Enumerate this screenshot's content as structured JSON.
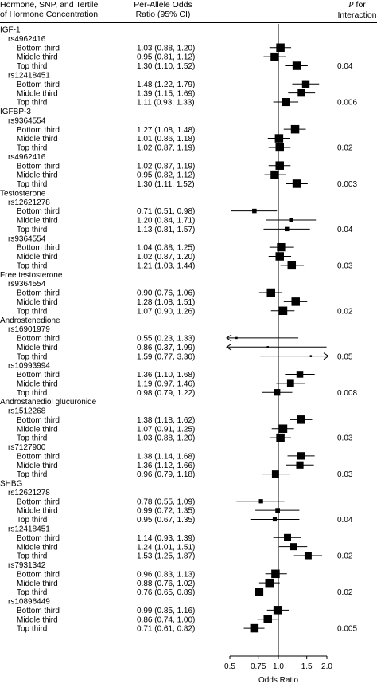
{
  "header": {
    "col1_line1": "Hormone, SNP, and Tertile",
    "col1_line2": "of Hormone Concentration",
    "col2_line1": "Per-Allele Odds",
    "col2_line2": "Ratio (95% CI)",
    "col3_p": "P",
    "col3_for": " for",
    "col3_line2": "Interaction"
  },
  "chart_data": {
    "type": "forest",
    "xlabel": "Odds Ratio",
    "x_ticks": [
      0.5,
      0.75,
      1.0,
      1.5,
      2.0
    ],
    "x_tick_labels": [
      "0.5",
      "0.75",
      "1.0",
      "1.5",
      "2.0"
    ],
    "x_scale": "log",
    "xlim": [
      0.5,
      2.0
    ],
    "reference_line": 1.0,
    "rows": [
      {
        "kind": "hormone",
        "label": "IGF-1"
      },
      {
        "kind": "snp",
        "label": "rs4962416"
      },
      {
        "kind": "tertile",
        "label": "Bottom third",
        "or": 1.03,
        "lo": 0.88,
        "hi": 1.2,
        "ci": "1.03 (0.88, 1.20)"
      },
      {
        "kind": "tertile",
        "label": "Middle third",
        "or": 0.95,
        "lo": 0.81,
        "hi": 1.12,
        "ci": "0.95 (0.81, 1.12)"
      },
      {
        "kind": "tertile",
        "label": "Top third",
        "or": 1.3,
        "lo": 1.1,
        "hi": 1.52,
        "ci": "1.30 (1.10, 1.52)",
        "p": "0.04"
      },
      {
        "kind": "snp",
        "label": "rs12418451"
      },
      {
        "kind": "tertile",
        "label": "Bottom third",
        "or": 1.48,
        "lo": 1.22,
        "hi": 1.79,
        "ci": "1.48 (1.22, 1.79)"
      },
      {
        "kind": "tertile",
        "label": "Middle third",
        "or": 1.39,
        "lo": 1.15,
        "hi": 1.69,
        "ci": "1.39 (1.15, 1.69)"
      },
      {
        "kind": "tertile",
        "label": "Top third",
        "or": 1.11,
        "lo": 0.93,
        "hi": 1.33,
        "ci": "1.11 (0.93, 1.33)",
        "p": "0.006"
      },
      {
        "kind": "hormone",
        "label": "IGFBP-3"
      },
      {
        "kind": "snp",
        "label": "rs9364554"
      },
      {
        "kind": "tertile",
        "label": "Bottom third",
        "or": 1.27,
        "lo": 1.08,
        "hi": 1.48,
        "ci": "1.27 (1.08, 1.48)"
      },
      {
        "kind": "tertile",
        "label": "Middle third",
        "or": 1.01,
        "lo": 0.86,
        "hi": 1.18,
        "ci": "1.01 (0.86, 1.18)"
      },
      {
        "kind": "tertile",
        "label": "Top third",
        "or": 1.02,
        "lo": 0.87,
        "hi": 1.19,
        "ci": "1.02 (0.87, 1.19)",
        "p": "0.02"
      },
      {
        "kind": "snp",
        "label": "rs4962416"
      },
      {
        "kind": "tertile",
        "label": "Bottom third",
        "or": 1.02,
        "lo": 0.87,
        "hi": 1.19,
        "ci": "1.02 (0.87, 1.19)"
      },
      {
        "kind": "tertile",
        "label": "Middle third",
        "or": 0.95,
        "lo": 0.82,
        "hi": 1.12,
        "ci": "0.95 (0.82, 1.12)"
      },
      {
        "kind": "tertile",
        "label": "Top third",
        "or": 1.3,
        "lo": 1.11,
        "hi": 1.52,
        "ci": "1.30 (1.11, 1.52)",
        "p": "0.003"
      },
      {
        "kind": "hormone",
        "label": "Testosterone"
      },
      {
        "kind": "snp",
        "label": "rs12621278"
      },
      {
        "kind": "tertile",
        "label": "Bottom third",
        "or": 0.71,
        "lo": 0.51,
        "hi": 0.98,
        "ci": "0.71 (0.51, 0.98)"
      },
      {
        "kind": "tertile",
        "label": "Middle third",
        "or": 1.2,
        "lo": 0.84,
        "hi": 1.71,
        "ci": "1.20 (0.84, 1.71)"
      },
      {
        "kind": "tertile",
        "label": "Top third",
        "or": 1.13,
        "lo": 0.81,
        "hi": 1.57,
        "ci": "1.13 (0.81, 1.57)",
        "p": "0.04"
      },
      {
        "kind": "snp",
        "label": "rs9364554"
      },
      {
        "kind": "tertile",
        "label": "Bottom third",
        "or": 1.04,
        "lo": 0.88,
        "hi": 1.25,
        "ci": "1.04 (0.88, 1.25)"
      },
      {
        "kind": "tertile",
        "label": "Middle third",
        "or": 1.02,
        "lo": 0.87,
        "hi": 1.2,
        "ci": "1.02 (0.87, 1.20)"
      },
      {
        "kind": "tertile",
        "label": "Top third",
        "or": 1.21,
        "lo": 1.03,
        "hi": 1.44,
        "ci": "1.21 (1.03, 1.44)",
        "p": "0.03"
      },
      {
        "kind": "hormone",
        "label": "Free testosterone"
      },
      {
        "kind": "snp",
        "label": "rs9364554"
      },
      {
        "kind": "tertile",
        "label": "Bottom third",
        "or": 0.9,
        "lo": 0.76,
        "hi": 1.06,
        "ci": "0.90 (0.76, 1.06)"
      },
      {
        "kind": "tertile",
        "label": "Middle third",
        "or": 1.28,
        "lo": 1.08,
        "hi": 1.51,
        "ci": "1.28 (1.08, 1.51)"
      },
      {
        "kind": "tertile",
        "label": "Top third",
        "or": 1.07,
        "lo": 0.9,
        "hi": 1.26,
        "ci": "1.07 (0.90, 1.26)",
        "p": "0.02"
      },
      {
        "kind": "hormone",
        "label": "Androstenedione"
      },
      {
        "kind": "snp",
        "label": "rs16901979"
      },
      {
        "kind": "tertile",
        "label": "Bottom third",
        "or": 0.55,
        "lo": 0.23,
        "hi": 1.33,
        "ci": "0.55 (0.23, 1.33)"
      },
      {
        "kind": "tertile",
        "label": "Middle third",
        "or": 0.86,
        "lo": 0.37,
        "hi": 1.99,
        "ci": "0.86 (0.37, 1.99)"
      },
      {
        "kind": "tertile",
        "label": "Top third",
        "or": 1.59,
        "lo": 0.77,
        "hi": 3.3,
        "ci": "1.59 (0.77, 3.30)",
        "p": "0.05"
      },
      {
        "kind": "snp",
        "label": "rs10993994"
      },
      {
        "kind": "tertile",
        "label": "Bottom third",
        "or": 1.36,
        "lo": 1.1,
        "hi": 1.68,
        "ci": "1.36 (1.10, 1.68)"
      },
      {
        "kind": "tertile",
        "label": "Middle third",
        "or": 1.19,
        "lo": 0.97,
        "hi": 1.46,
        "ci": "1.19 (0.97, 1.46)"
      },
      {
        "kind": "tertile",
        "label": "Top third",
        "or": 0.98,
        "lo": 0.79,
        "hi": 1.22,
        "ci": "0.98 (0.79, 1.22)",
        "p": "0.008"
      },
      {
        "kind": "hormone",
        "label": "Androstanediol glucuronide"
      },
      {
        "kind": "snp",
        "label": "rs1512268"
      },
      {
        "kind": "tertile",
        "label": "Bottom third",
        "or": 1.38,
        "lo": 1.18,
        "hi": 1.62,
        "ci": "1.38 (1.18, 1.62)"
      },
      {
        "kind": "tertile",
        "label": "Middle third",
        "or": 1.07,
        "lo": 0.91,
        "hi": 1.25,
        "ci": "1.07 (0.91, 1.25)"
      },
      {
        "kind": "tertile",
        "label": "Top third",
        "or": 1.03,
        "lo": 0.88,
        "hi": 1.2,
        "ci": "1.03 (0.88, 1.20)",
        "p": "0.03"
      },
      {
        "kind": "snp",
        "label": "rs7127900"
      },
      {
        "kind": "tertile",
        "label": "Bottom third",
        "or": 1.38,
        "lo": 1.14,
        "hi": 1.68,
        "ci": "1.38 (1.14, 1.68)"
      },
      {
        "kind": "tertile",
        "label": "Middle third",
        "or": 1.36,
        "lo": 1.12,
        "hi": 1.66,
        "ci": "1.36 (1.12, 1.66)"
      },
      {
        "kind": "tertile",
        "label": "Top third",
        "or": 0.96,
        "lo": 0.79,
        "hi": 1.18,
        "ci": "0.96 (0.79, 1.18)",
        "p": "0.03"
      },
      {
        "kind": "hormone",
        "label": "SHBG"
      },
      {
        "kind": "snp",
        "label": "rs12621278"
      },
      {
        "kind": "tertile",
        "label": "Bottom third",
        "or": 0.78,
        "lo": 0.55,
        "hi": 1.09,
        "ci": "0.78 (0.55, 1.09)"
      },
      {
        "kind": "tertile",
        "label": "Middle third",
        "or": 0.99,
        "lo": 0.72,
        "hi": 1.35,
        "ci": "0.99 (0.72, 1.35)"
      },
      {
        "kind": "tertile",
        "label": "Top third",
        "or": 0.95,
        "lo": 0.67,
        "hi": 1.35,
        "ci": "0.95 (0.67, 1.35)",
        "p": "0.04"
      },
      {
        "kind": "snp",
        "label": "rs12418451"
      },
      {
        "kind": "tertile",
        "label": "Bottom third",
        "or": 1.14,
        "lo": 0.93,
        "hi": 1.39,
        "ci": "1.14 (0.93, 1.39)"
      },
      {
        "kind": "tertile",
        "label": "Middle third",
        "or": 1.24,
        "lo": 1.01,
        "hi": 1.51,
        "ci": "1.24 (1.01, 1.51)"
      },
      {
        "kind": "tertile",
        "label": "Top third",
        "or": 1.53,
        "lo": 1.25,
        "hi": 1.87,
        "ci": "1.53 (1.25, 1.87)",
        "p": "0.02"
      },
      {
        "kind": "snp",
        "label": "rs7931342"
      },
      {
        "kind": "tertile",
        "label": "Bottom third",
        "or": 0.96,
        "lo": 0.83,
        "hi": 1.13,
        "ci": "0.96 (0.83, 1.13)"
      },
      {
        "kind": "tertile",
        "label": "Middle third",
        "or": 0.88,
        "lo": 0.76,
        "hi": 1.02,
        "ci": "0.88 (0.76, 1.02)"
      },
      {
        "kind": "tertile",
        "label": "Top third",
        "or": 0.76,
        "lo": 0.65,
        "hi": 0.89,
        "ci": "0.76 (0.65, 0.89)",
        "p": "0.02"
      },
      {
        "kind": "snp",
        "label": "rs10896449"
      },
      {
        "kind": "tertile",
        "label": "Bottom third",
        "or": 0.99,
        "lo": 0.85,
        "hi": 1.16,
        "ci": "0.99 (0.85, 1.16)"
      },
      {
        "kind": "tertile",
        "label": "Middle third",
        "or": 0.86,
        "lo": 0.74,
        "hi": 1.0,
        "ci": "0.86 (0.74, 1.00)"
      },
      {
        "kind": "tertile",
        "label": "Top third",
        "or": 0.71,
        "lo": 0.61,
        "hi": 0.82,
        "ci": "0.71 (0.61, 0.82)",
        "p": "0.005"
      }
    ]
  }
}
